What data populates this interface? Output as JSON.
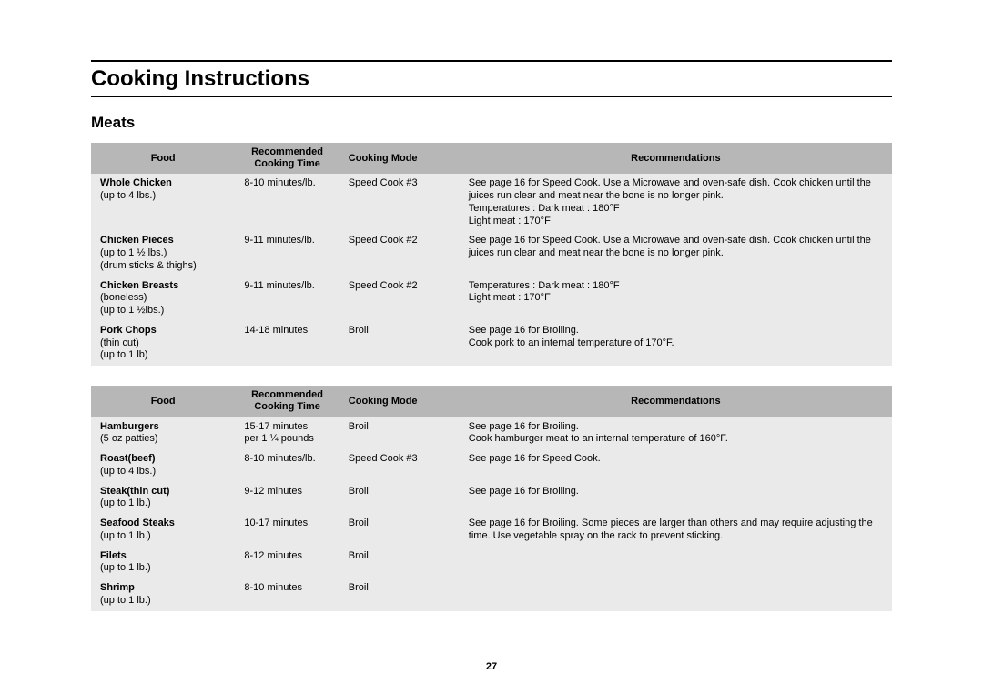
{
  "title": "Cooking Instructions",
  "section": "Meats",
  "page_number": "27",
  "headers": {
    "food": "Food",
    "time": "Recommended\nCooking Time",
    "mode": "Cooking Mode",
    "rec": "Recommendations"
  },
  "table1": {
    "rows": [
      {
        "food_bold": "Whole Chicken",
        "food_sub": "(up to 4 lbs.)",
        "time": "8-10 minutes/lb.",
        "mode": "Speed Cook #3",
        "rec": "See page 16 for Speed Cook. Use a Microwave and oven-safe dish. Cook chicken until the juices run clear and meat near the bone is no longer pink.\nTemperatures : Dark meat : 180°F\n                             Light meat : 170°F"
      },
      {
        "food_bold": "Chicken Pieces",
        "food_sub": "(up to 1 ½ lbs.)\n(drum sticks & thighs)",
        "time": "9-11 minutes/lb.",
        "mode": "Speed Cook #2",
        "rec": "See page 16 for Speed Cook. Use a Microwave and oven-safe dish. Cook chicken until the juices run clear and meat near the bone is no longer pink."
      },
      {
        "food_bold": "Chicken Breasts",
        "food_sub": "(boneless)\n(up to 1 ½lbs.)",
        "time": "9-11 minutes/lb.",
        "mode": "Speed Cook #2",
        "rec": "Temperatures : Dark meat : 180°F\n                             Light meat : 170°F"
      },
      {
        "food_bold": "Pork Chops",
        "food_sub": "(thin cut)\n(up to 1 lb)",
        "time": "14-18 minutes",
        "mode": "Broil",
        "rec": "See page 16 for Broiling.\nCook pork to an internal temperature of 170°F."
      }
    ]
  },
  "table2": {
    "rows": [
      {
        "food_bold": "Hamburgers",
        "food_sub": "(5 oz patties)",
        "time": "15-17 minutes\nper 1 ¼ pounds",
        "mode": "Broil",
        "rec": "See page 16 for Broiling.\nCook hamburger meat to an internal temperature of 160°F."
      },
      {
        "food_bold": "Roast(beef)",
        "food_sub": "(up to 4 lbs.)",
        "time": "8-10 minutes/lb.",
        "mode": "Speed Cook #3",
        "rec": "See page 16 for Speed Cook."
      },
      {
        "food_bold": "Steak(thin cut)",
        "food_sub": "(up to 1 lb.)",
        "time": "9-12 minutes",
        "mode": "Broil",
        "rec": "See page 16 for Broiling."
      },
      {
        "food_bold": "Seafood Steaks",
        "food_sub": "(up to 1 lb.)",
        "time": "10-17 minutes",
        "mode": "Broil",
        "rec": "See page 16 for Broiling. Some pieces are larger than others and may require adjusting the time. Use vegetable spray on the rack to prevent sticking."
      },
      {
        "food_bold": "Filets",
        "food_sub": "(up to 1 lb.)",
        "time": "8-12 minutes",
        "mode": "Broil",
        "rec": ""
      },
      {
        "food_bold": "Shrimp",
        "food_sub": "(up to 1 lb.)",
        "time": "8-10 minutes",
        "mode": "Broil",
        "rec": ""
      }
    ]
  }
}
